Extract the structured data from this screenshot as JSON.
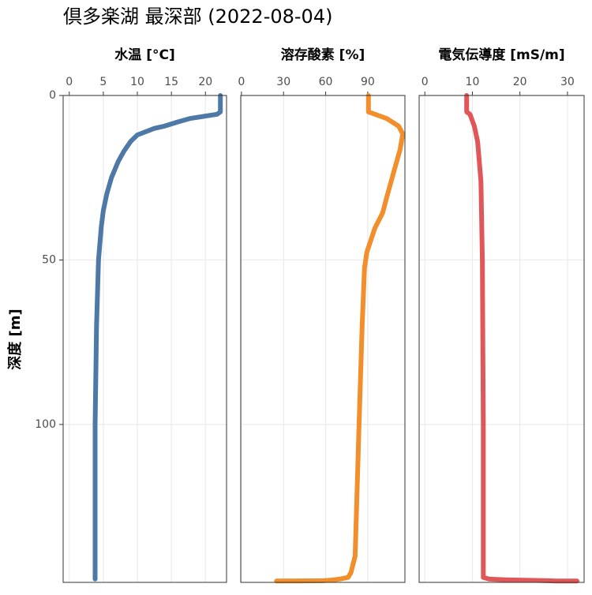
{
  "title": "倶多楽湖 最深部 (2022-08-04)",
  "y_label": "深度 [m]",
  "chart_data": [
    {
      "type": "line",
      "title": "水温 [°C]",
      "color": "#4e79a7",
      "grid": true,
      "y_reversed": true,
      "xlim": [
        -0.9,
        23.1
      ],
      "xticks": [
        0,
        5,
        10,
        15,
        20
      ],
      "ylim": [
        0,
        148
      ],
      "yticks": [
        0,
        50,
        100
      ],
      "y": [
        0,
        5,
        5.7,
        7,
        8,
        9.3,
        10,
        12,
        14,
        17,
        20,
        25,
        30,
        35,
        40,
        50,
        70,
        100,
        147
      ],
      "x": [
        22.2,
        22.2,
        21.7,
        17.7,
        16,
        14,
        12.5,
        10,
        9,
        8,
        7.2,
        6.2,
        5.5,
        5,
        4.7,
        4.3,
        4.0,
        3.8,
        3.8
      ]
    },
    {
      "type": "line",
      "title": "溶存酸素 [%]",
      "color": "#f28e2b",
      "grid": true,
      "y_reversed": true,
      "xlim": [
        -0.5,
        116.5
      ],
      "xticks": [
        0,
        30,
        60,
        90
      ],
      "ylim": [
        0,
        148
      ],
      "yticks": [
        0,
        50,
        100
      ],
      "y": [
        0,
        5,
        7,
        9.3,
        11.7,
        16.5,
        22.5,
        31,
        35.6,
        40.4,
        47.6,
        52.4,
        70,
        100,
        140,
        145,
        146.5,
        147,
        147.3,
        147.5,
        147.6
      ],
      "x": [
        90.5,
        90.5,
        103.5,
        112,
        115,
        113,
        109,
        103.5,
        100.7,
        95,
        89.4,
        87.7,
        86,
        83.8,
        81,
        78,
        76,
        70,
        64,
        58,
        25
      ]
    },
    {
      "type": "line",
      "title": "電気伝導度 [mS/m]",
      "color": "#e15759",
      "grid": true,
      "y_reversed": true,
      "xlim": [
        -1.2,
        33.5
      ],
      "xticks": [
        0,
        10,
        20,
        30
      ],
      "ylim": [
        0,
        148
      ],
      "yticks": [
        0,
        50,
        100
      ],
      "y": [
        0,
        5,
        5.7,
        9.3,
        14,
        26,
        50,
        100,
        146.5,
        147,
        147.1,
        147.2,
        147.3,
        147.4,
        147.5,
        147.6,
        147.6
      ],
      "x": [
        8.8,
        8.8,
        9.5,
        10.4,
        11.1,
        11.8,
        12.1,
        12.3,
        12.3,
        13.5,
        15,
        17,
        20,
        23,
        26,
        27.5,
        32
      ]
    }
  ]
}
